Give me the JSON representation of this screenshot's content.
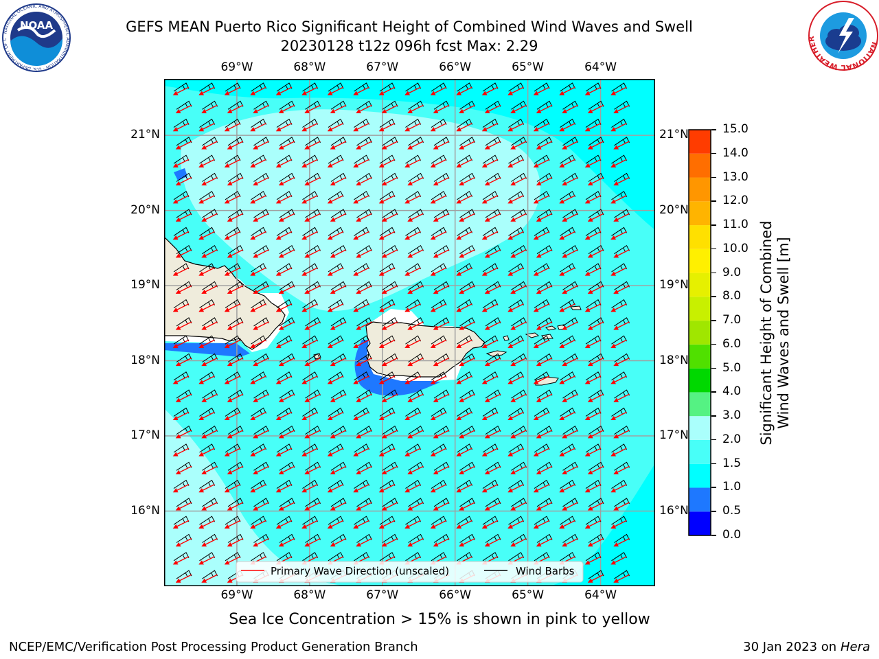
{
  "header": {
    "title_line1": "GEFS MEAN Puerto Rico Significant Height of Combined Wind Waves and Swell",
    "title_line2": "20230128 t12z 096h fcst   Max: 2.29"
  },
  "logos": {
    "left_name": "NOAA",
    "left_ring_text": "NATIONAL OCEANIC AND ATMOSPHERIC ADMINISTRATION · U.S. DEPARTMENT OF COMMERCE",
    "right_ring_text": "NATIONAL WEATHER SERVICE"
  },
  "map": {
    "lon_labels": [
      "69°W",
      "68°W",
      "67°W",
      "66°W",
      "65°W",
      "64°W"
    ],
    "lat_labels": [
      "21°N",
      "20°N",
      "19°N",
      "18°N",
      "17°N",
      "16°N"
    ],
    "lon_values": [
      -69,
      -68,
      -67,
      -66,
      -65,
      -64
    ],
    "lat_values": [
      21,
      20,
      19,
      18,
      17,
      16
    ],
    "extent": {
      "lon_min": -70.0,
      "lon_max": -63.25,
      "lat_min": 15.0,
      "lat_max": 21.75
    },
    "colors": {
      "land": "#efecdc",
      "wave_0_5_1_0": "#1e78ff",
      "wave_1_0_1_5": "#00ffff",
      "wave_1_5_2_0": "#48fff8",
      "wave_2_0_3_0": "#aafffc",
      "wave_direction": "#ff0000",
      "wind_barbs": "#000000"
    }
  },
  "legend": {
    "wave_direction_label": "Primary Wave Direction (unscaled)",
    "wind_barbs_label": "Wind Barbs"
  },
  "colorbar": {
    "label_line1": "Significant Height of Combined",
    "label_line2": "Wind Waves and Swell [m]",
    "ticks": [
      "15.0",
      "14.0",
      "13.0",
      "12.0",
      "11.0",
      "10.0",
      "9.0",
      "8.0",
      "7.0",
      "6.0",
      "5.0",
      "4.0",
      "3.0",
      "2.0",
      "1.5",
      "1.0",
      "0.5",
      "0.0"
    ],
    "colors_bottom_to_top": [
      "#0000ff",
      "#1e78ff",
      "#00ffff",
      "#48fff8",
      "#aafffc",
      "#55f283",
      "#00d800",
      "#50e000",
      "#a0e600",
      "#c8f000",
      "#e6f000",
      "#fff000",
      "#ffe000",
      "#ffb400",
      "#ff9600",
      "#ff6e00",
      "#ff3c00",
      "#ff0000"
    ]
  },
  "note": "Sea Ice Concentration > 15% is shown in pink to yellow",
  "footer": {
    "left": "NCEP/EMC/Verification Post Processing Product Generation Branch",
    "date": "30 Jan 2023 on ",
    "host": "Hera"
  }
}
